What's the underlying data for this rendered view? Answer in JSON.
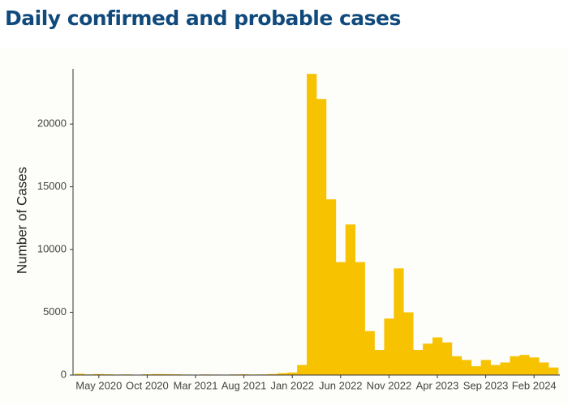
{
  "chart_data": {
    "type": "bar",
    "title": "Daily confirmed and probable cases",
    "y_label": "Number of Cases",
    "categories": [
      null,
      null,
      "May 2020",
      null,
      null,
      null,
      null,
      "Oct 2020",
      null,
      null,
      null,
      null,
      "Mar 2021",
      null,
      null,
      null,
      null,
      "Aug 2021",
      null,
      null,
      null,
      null,
      "Jan 2022",
      null,
      null,
      null,
      null,
      "Jun 2022",
      null,
      null,
      null,
      null,
      "Nov 2022",
      null,
      null,
      null,
      null,
      "Apr 2023",
      null,
      null,
      null,
      null,
      "Sep 2023",
      null,
      null,
      null,
      null,
      "Feb 2024",
      null,
      null
    ],
    "values": [
      100,
      50,
      80,
      60,
      40,
      50,
      30,
      60,
      80,
      70,
      60,
      40,
      30,
      50,
      40,
      30,
      50,
      60,
      40,
      50,
      80,
      150,
      200,
      800,
      24000,
      22000,
      14000,
      9000,
      12000,
      9000,
      3500,
      2000,
      4500,
      8500,
      5000,
      2000,
      2500,
      3000,
      2600,
      1500,
      1200,
      700,
      1200,
      800,
      1000,
      1500,
      1600,
      1400,
      1000,
      600
    ],
    "color": "#f7c200",
    "ylim": [
      0,
      24400
    ],
    "yticks": [
      0,
      5000,
      10000,
      15000,
      20000
    ],
    "grid": false
  }
}
